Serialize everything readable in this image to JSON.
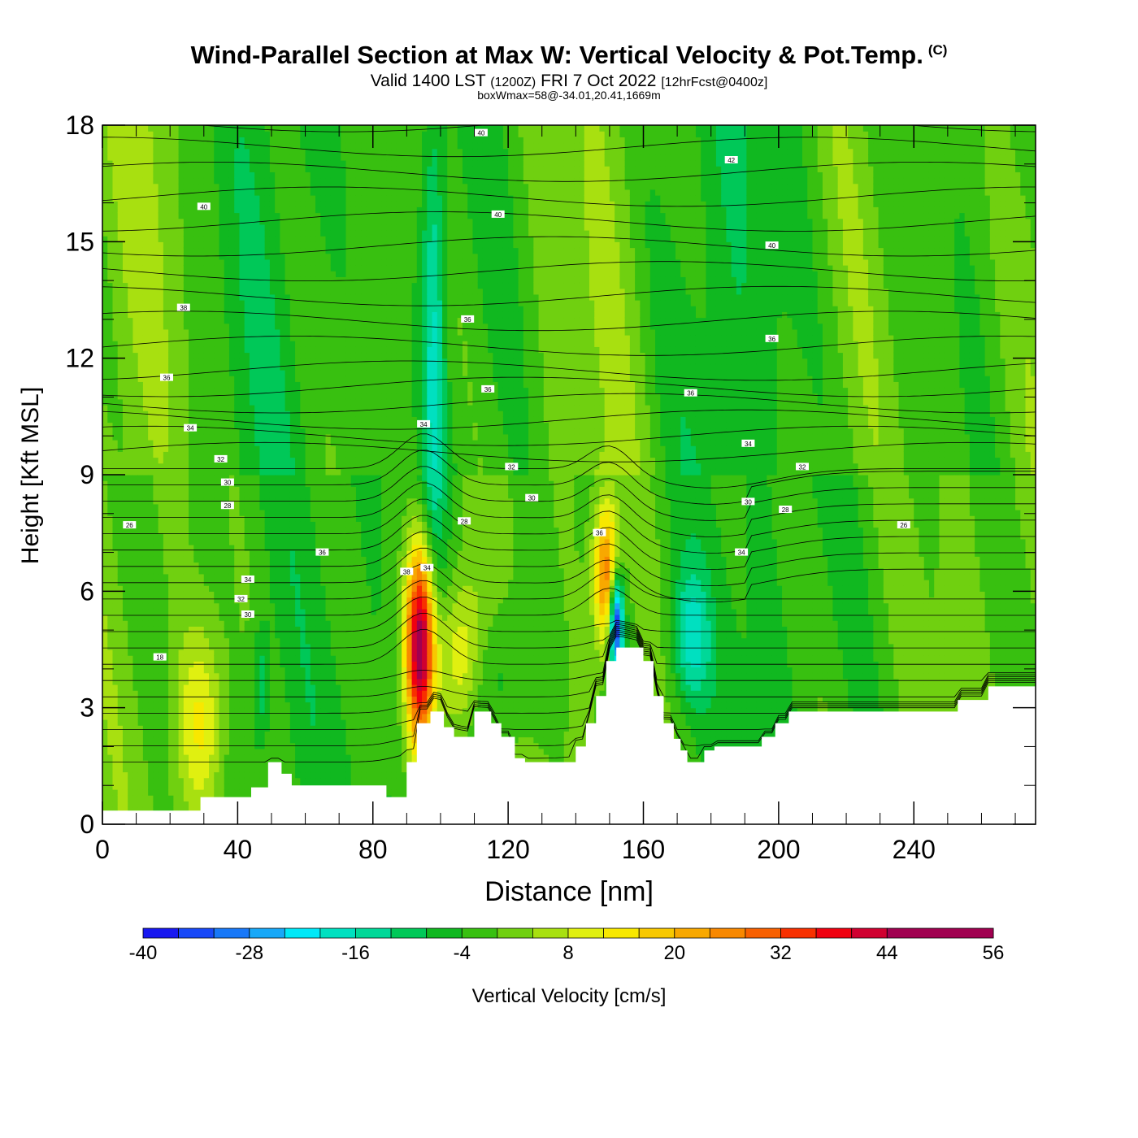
{
  "header": {
    "title": "Wind-Parallel Section at Max W: Vertical Velocity & Pot.Temp.",
    "copyright": "(C)",
    "valid_prefix": "Valid 1400 LST",
    "valid_utc": "(1200Z)",
    "valid_date": "FRI 7 Oct 2022",
    "forecast": "[12hrFcst@0400z]",
    "box_note": "boxWmax=58@-34.01,20.41,1669m"
  },
  "chart_data": {
    "type": "heatmap",
    "title": "Wind-Parallel Section at Max W: Vertical Velocity & Pot.Temp.",
    "xlabel": "Distance [nm]",
    "ylabel": "Height [Kft MSL]",
    "xlim": [
      0,
      276
    ],
    "ylim": [
      0,
      18
    ],
    "x_ticks": [
      0,
      40,
      80,
      120,
      160,
      200,
      240
    ],
    "y_ticks": [
      0,
      3,
      6,
      9,
      12,
      15,
      18
    ],
    "colorbar": {
      "label": "Vertical Velocity [cm/s]",
      "ticks": [
        -40,
        -28,
        -16,
        -4,
        8,
        20,
        32,
        44,
        56
      ],
      "min": -40,
      "max": 56,
      "step": 4,
      "colors": [
        "#1818f0",
        "#1848f8",
        "#1878f8",
        "#18a8f8",
        "#00e8f8",
        "#00e0c0",
        "#00d898",
        "#00c858",
        "#10b820",
        "#38c010",
        "#70d010",
        "#a8e010",
        "#e0f010",
        "#f8e800",
        "#f8c800",
        "#f8a800",
        "#f88800",
        "#f86000",
        "#f83000",
        "#f00010",
        "#d00030",
        "#a00050"
      ]
    },
    "terrain": [
      [
        0,
        0.35
      ],
      [
        29,
        0.35
      ],
      [
        29,
        0.7
      ],
      [
        36,
        0.7
      ],
      [
        36,
        0.7
      ],
      [
        44,
        0.7
      ],
      [
        44,
        0.95
      ],
      [
        49,
        0.95
      ],
      [
        49,
        1.6
      ],
      [
        53,
        1.6
      ],
      [
        53,
        1.3
      ],
      [
        56,
        1.3
      ],
      [
        56,
        1.0
      ],
      [
        84,
        1.0
      ],
      [
        84,
        0.7
      ],
      [
        90,
        0.7
      ],
      [
        90,
        1.6
      ],
      [
        93,
        1.6
      ],
      [
        93,
        2.6
      ],
      [
        97,
        2.6
      ],
      [
        97,
        2.9
      ],
      [
        101,
        2.9
      ],
      [
        101,
        2.5
      ],
      [
        104,
        2.5
      ],
      [
        104,
        2.25
      ],
      [
        110,
        2.25
      ],
      [
        110,
        2.9
      ],
      [
        115,
        2.9
      ],
      [
        115,
        2.6
      ],
      [
        118,
        2.6
      ],
      [
        118,
        2.25
      ],
      [
        122,
        2.25
      ],
      [
        122,
        1.7
      ],
      [
        125,
        1.7
      ],
      [
        125,
        1.6
      ],
      [
        134,
        1.6
      ],
      [
        134,
        1.6
      ],
      [
        140,
        1.6
      ],
      [
        140,
        2.0
      ],
      [
        143,
        2.0
      ],
      [
        143,
        2.6
      ],
      [
        146,
        2.6
      ],
      [
        146,
        3.3
      ],
      [
        149,
        3.3
      ],
      [
        149,
        4.2
      ],
      [
        152,
        4.2
      ],
      [
        152,
        4.55
      ],
      [
        160,
        4.55
      ],
      [
        160,
        4.2
      ],
      [
        163,
        4.2
      ],
      [
        163,
        3.3
      ],
      [
        166,
        3.3
      ],
      [
        166,
        2.6
      ],
      [
        169,
        2.6
      ],
      [
        169,
        2.2
      ],
      [
        171,
        2.2
      ],
      [
        171,
        1.9
      ],
      [
        173,
        1.9
      ],
      [
        173,
        1.6
      ],
      [
        178,
        1.6
      ],
      [
        178,
        1.9
      ],
      [
        181,
        1.9
      ],
      [
        181,
        2.0
      ],
      [
        195,
        2.0
      ],
      [
        195,
        2.25
      ],
      [
        199,
        2.25
      ],
      [
        199,
        2.6
      ],
      [
        203,
        2.6
      ],
      [
        203,
        2.9
      ],
      [
        210,
        2.9
      ],
      [
        210,
        2.9
      ],
      [
        226,
        2.9
      ],
      [
        226,
        2.9
      ],
      [
        253,
        2.9
      ],
      [
        253,
        3.2
      ],
      [
        262,
        3.2
      ],
      [
        262,
        3.55
      ],
      [
        276,
        3.55
      ]
    ],
    "updrafts": [
      {
        "x": 29,
        "z": 2.6,
        "w": 14,
        "sx": 5,
        "sz": 1.8
      },
      {
        "x": 94,
        "z": 4.6,
        "w": 50,
        "sx": 3,
        "sz": 1.8
      },
      {
        "x": 106,
        "z": 4.3,
        "w": 17,
        "sx": 5,
        "sz": 1.5
      },
      {
        "x": 149,
        "z": 6.4,
        "w": 30,
        "sx": 2.5,
        "sz": 1.3
      },
      {
        "x": 152,
        "z": 5.2,
        "w": -40,
        "sx": 1.5,
        "sz": 0.9
      },
      {
        "x": 98,
        "z": 12.5,
        "w": -14,
        "sx": 2.5,
        "sz": 5
      },
      {
        "x": 174,
        "z": 4.8,
        "w": -14,
        "sx": 4,
        "sz": 1.2
      },
      {
        "x": 47,
        "z": 3.5,
        "w": -10,
        "sx": 2,
        "sz": 1.2
      },
      {
        "x": 118,
        "z": 4.0,
        "w": -8,
        "sx": 8,
        "sz": 1.5
      }
    ],
    "isentropes": {
      "values": [
        16,
        18,
        20,
        22,
        24,
        25,
        26,
        28,
        30,
        32,
        34,
        36,
        38,
        40,
        42
      ],
      "contour_labels": [
        {
          "text": "18",
          "x": 17,
          "z": 4.3
        },
        {
          "text": "30",
          "x": 43,
          "z": 5.4
        },
        {
          "text": "32",
          "x": 41,
          "z": 5.8
        },
        {
          "text": "34",
          "x": 43,
          "z": 6.3
        },
        {
          "text": "36",
          "x": 65,
          "z": 7.0
        },
        {
          "text": "26",
          "x": 8,
          "z": 7.7
        },
        {
          "text": "28",
          "x": 37,
          "z": 8.2
        },
        {
          "text": "30",
          "x": 37,
          "z": 8.8
        },
        {
          "text": "32",
          "x": 35,
          "z": 9.4
        },
        {
          "text": "34",
          "x": 26,
          "z": 10.2
        },
        {
          "text": "36",
          "x": 19,
          "z": 11.5
        },
        {
          "text": "38",
          "x": 24,
          "z": 13.3
        },
        {
          "text": "40",
          "x": 30,
          "z": 15.9
        },
        {
          "text": "38",
          "x": 90,
          "z": 6.5
        },
        {
          "text": "34",
          "x": 96,
          "z": 6.6
        },
        {
          "text": "28",
          "x": 107,
          "z": 7.8
        },
        {
          "text": "30",
          "x": 127,
          "z": 8.4
        },
        {
          "text": "32",
          "x": 121,
          "z": 9.2
        },
        {
          "text": "34",
          "x": 95,
          "z": 10.3
        },
        {
          "text": "36",
          "x": 114,
          "z": 11.2
        },
        {
          "text": "36",
          "x": 108,
          "z": 13.0
        },
        {
          "text": "40",
          "x": 117,
          "z": 15.7
        },
        {
          "text": "40",
          "x": 112,
          "z": 17.8
        },
        {
          "text": "42",
          "x": 186,
          "z": 17.1
        },
        {
          "text": "40",
          "x": 198,
          "z": 14.9
        },
        {
          "text": "36",
          "x": 198,
          "z": 12.5
        },
        {
          "text": "36",
          "x": 174,
          "z": 11.1
        },
        {
          "text": "34",
          "x": 191,
          "z": 9.8
        },
        {
          "text": "32",
          "x": 207,
          "z": 9.2
        },
        {
          "text": "30",
          "x": 191,
          "z": 8.3
        },
        {
          "text": "28",
          "x": 202,
          "z": 8.1
        },
        {
          "text": "26",
          "x": 237,
          "z": 7.7
        },
        {
          "text": "34",
          "x": 189,
          "z": 7.0
        },
        {
          "text": "36",
          "x": 147,
          "z": 7.5
        }
      ]
    }
  }
}
